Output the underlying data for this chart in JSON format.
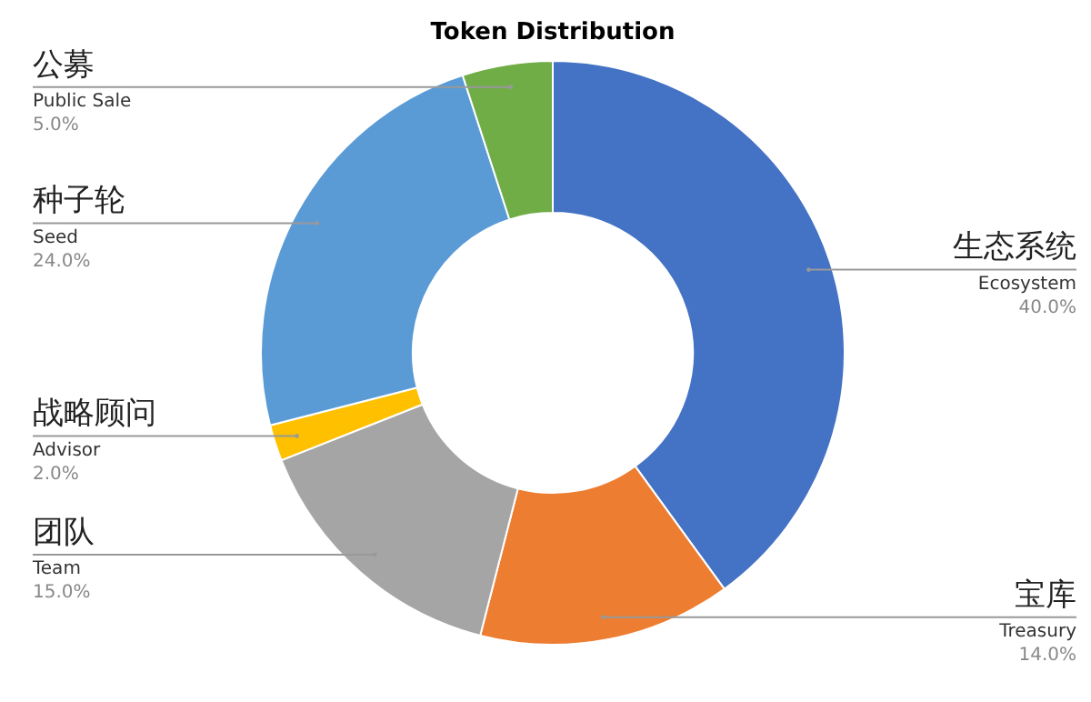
{
  "chart_data": {
    "type": "donut",
    "title": "Token Distribution",
    "categories": [
      "Ecosystem",
      "Treasury",
      "Team",
      "Advisor",
      "Seed",
      "Public Sale"
    ],
    "values": [
      40,
      14,
      15,
      2,
      24,
      5
    ],
    "value_labels": [
      "40.0%",
      "14.0%",
      "15.0%",
      "2.0%",
      "24.0%",
      "5.0%"
    ],
    "colors": [
      "#4472c4",
      "#ed7d31",
      "#a5a5a5",
      "#ffc000",
      "#5b9bd5",
      "#70ad47"
    ],
    "annotations": [
      "生态系统",
      "宝库",
      "团队",
      "战略顾问",
      "种子轮",
      "公募"
    ],
    "legend": false
  }
}
